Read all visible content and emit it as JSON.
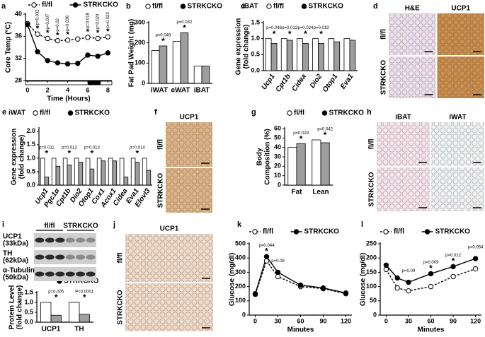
{
  "chart_data": [
    {
      "label": "a",
      "type": "line",
      "ylabel": [
        "Core Temp (°C)"
      ],
      "xlabel": "Time (Hours)",
      "x": [
        0,
        1,
        2,
        3,
        4,
        5,
        6,
        7,
        8
      ],
      "xlim": [
        -0.2,
        8.4
      ],
      "xticks": [
        0,
        2,
        4,
        6,
        8
      ],
      "ylim": [
        28,
        40
      ],
      "yticks": [
        28,
        32,
        36,
        40
      ],
      "series": [
        {
          "name": "fl/fl",
          "color": "#000000",
          "marker": "open",
          "dashed": true,
          "values": [
            38.3,
            36.4,
            35.6,
            35.2,
            35.3,
            35.5,
            35.8,
            35.6,
            35.9
          ]
        },
        {
          "name": "STRKCKO",
          "color": "#000000",
          "marker": "filled",
          "dashed": false,
          "values": [
            38.1,
            33.2,
            31.6,
            31.2,
            31.0,
            31.1,
            32.6,
            32.4,
            33.0
          ]
        }
      ],
      "p_values": [
        null,
        "p=0.032",
        "p=0.007",
        "p=0.02",
        "p=0.036",
        null,
        "p=0.018",
        "p=0.024",
        "p=0.023"
      ],
      "stars": [
        null,
        "*",
        "*",
        "*",
        "*",
        null,
        "*",
        "*",
        "*"
      ]
    },
    {
      "label": "b",
      "type": "bar",
      "ylabel": [
        "Fat Pad Weight (mg)"
      ],
      "categories": [
        "iWAT",
        "eWAT",
        "iBAT"
      ],
      "ylim": [
        0,
        300
      ],
      "yticks": [
        0,
        100,
        200,
        300
      ],
      "series": [
        {
          "name": "fl/fl",
          "color": "#ffffff",
          "marker": "open",
          "values": [
            162,
            208,
            85
          ]
        },
        {
          "name": "STRKCKO",
          "color": "#9e9e9e",
          "marker": "filled",
          "values": [
            185,
            250,
            86
          ]
        }
      ],
      "p_values": [
        "p=0.049",
        "p=0.032",
        null
      ],
      "stars": [
        "*",
        "*",
        null
      ]
    },
    {
      "label": "c",
      "type": "bar",
      "title": "iBAT",
      "ylabel": [
        "Gene expression",
        "(fold change)"
      ],
      "italic_categories": true,
      "categories": [
        "Ucp1",
        "Cpt1b",
        "Cidea",
        "Dio2",
        "Otop1",
        "Eva1"
      ],
      "ylim": [
        0,
        1.5
      ],
      "yticks": [
        {
          "value": 0,
          "label": "0.0"
        },
        {
          "value": 0.5,
          "label": "0.5"
        },
        {
          "value": 1,
          "label": "1.0"
        },
        {
          "value": 1.5,
          "label": "1.5"
        }
      ],
      "series": [
        {
          "name": "fl/fl",
          "color": "#ffffff",
          "marker": "open",
          "values": [
            1.0,
            1.0,
            1.0,
            1.0,
            1.0,
            1.0
          ]
        },
        {
          "name": "STRKCKO",
          "color": "#9e9e9e",
          "marker": "filled",
          "values": [
            0.85,
            0.95,
            0.85,
            0.85,
            0.9,
            0.95
          ]
        }
      ],
      "p_values": [
        "p=0.046",
        "p=0.013",
        "p=0.024",
        "p=0.019",
        null,
        null
      ],
      "stars": [
        "*",
        "*",
        "*",
        "*",
        null,
        null
      ]
    },
    {
      "label": "e",
      "type": "bar",
      "title": "iWAT",
      "ylabel": [
        "Gene expression",
        "(fold change)"
      ],
      "italic_categories": true,
      "categories": [
        "Ucp1",
        "Pgc1α",
        "Cpt1b",
        "Dio2",
        "Otop1",
        "Cox1",
        "Acox1",
        "Cidea",
        "Eva1",
        "Elovl3"
      ],
      "ylim": [
        0,
        2.1
      ],
      "yticks": [
        {
          "value": 0,
          "label": "0.0"
        },
        {
          "value": 0.5,
          "label": "0.5"
        },
        {
          "value": 1,
          "label": "1.0"
        },
        {
          "value": 1.5,
          "label": "1.5"
        },
        {
          "value": 2,
          "label": "2.0"
        }
      ],
      "series": [
        {
          "name": "fl/fl",
          "color": "#ffffff",
          "marker": "open",
          "values": [
            1.0,
            1.0,
            1.0,
            1.0,
            1.0,
            1.0,
            1.0,
            1.0,
            1.0,
            1.0
          ]
        },
        {
          "name": "STRKCKO",
          "color": "#9e9e9e",
          "marker": "filled",
          "values": [
            0.3,
            0.7,
            0.75,
            0.85,
            0.6,
            0.9,
            0.9,
            0.3,
            0.85,
            0.55
          ]
        }
      ],
      "p_values": [
        "p=0.011",
        null,
        "p=0.012",
        null,
        "p=0.013",
        null,
        null,
        null,
        "p=0.014",
        null
      ],
      "stars": [
        "*",
        null,
        "*",
        null,
        "*",
        null,
        null,
        null,
        "*",
        null
      ]
    },
    {
      "label": "g",
      "type": "bar",
      "ylabel": [
        "Body",
        "Composition (%)"
      ],
      "categories": [
        "Fat",
        "Lean"
      ],
      "ylim": [
        0,
        60
      ],
      "yticks": [
        0,
        10,
        20,
        30,
        40,
        50,
        60
      ],
      "series": [
        {
          "name": "fl/fl",
          "color": "#ffffff",
          "marker": "open",
          "values": [
            40,
            48
          ]
        },
        {
          "name": "STRKCKO",
          "color": "#9e9e9e",
          "marker": "filled",
          "values": [
            44,
            45
          ]
        }
      ],
      "p_values": [
        "p=0.029",
        "p=0.042"
      ],
      "stars": [
        "*",
        "*"
      ]
    },
    {
      "type": "bar",
      "ylabel": [
        "Protein Level",
        "(fold change)"
      ],
      "categories": [
        "UCP1",
        "TH"
      ],
      "ylim": [
        0,
        1.5
      ],
      "yticks": [
        {
          "value": 0,
          "label": "0.0"
        },
        {
          "value": 0.5,
          "label": "0.5"
        },
        {
          "value": 1,
          "label": "1.0"
        },
        {
          "value": 1.5,
          "label": "1.5"
        }
      ],
      "series": [
        {
          "name": "fl/fl",
          "color": "#ffffff",
          "marker": "open",
          "values": [
            1.0,
            1.0
          ]
        },
        {
          "name": "STRKCKO",
          "color": "#9e9e9e",
          "marker": "filled",
          "values": [
            0.35,
            0.4
          ]
        }
      ],
      "p_values": [
        "p=0.005",
        "P<0.0001"
      ],
      "stars": [
        "*",
        "*"
      ]
    },
    {
      "label": "k",
      "type": "line",
      "ylabel": [
        "Glucose (mg/dl)"
      ],
      "xlabel": "Minutes",
      "x": [
        0,
        15,
        30,
        60,
        90,
        120
      ],
      "xlim": [
        -8,
        128
      ],
      "xticks": [
        0,
        30,
        60,
        90,
        120
      ],
      "ylim": [
        0,
        500
      ],
      "yticks": [
        0,
        100,
        200,
        300,
        400,
        500
      ],
      "series": [
        {
          "name": "fl/fl",
          "color": "#000000",
          "marker": "open",
          "dashed": true,
          "values": [
            145,
            380,
            270,
            200,
            185,
            150
          ]
        },
        {
          "name": "STRKCKO",
          "color": "#000000",
          "marker": "filled",
          "dashed": false,
          "values": [
            150,
            410,
            300,
            210,
            190,
            155
          ]
        }
      ],
      "p_values": [
        null,
        "p=0.044",
        "p=0.09",
        null,
        null,
        null
      ],
      "stars": [
        null,
        "*",
        null,
        null,
        null,
        null
      ]
    },
    {
      "label": "l",
      "type": "line",
      "ylabel": [
        "Glucose (mg/dl)"
      ],
      "xlabel": "Minutes",
      "x": [
        0,
        15,
        30,
        60,
        90,
        120
      ],
      "xlim": [
        -8,
        128
      ],
      "xticks": [
        0,
        30,
        60,
        90,
        120
      ],
      "ylim": [
        0,
        250
      ],
      "yticks": [
        0,
        50,
        100,
        150,
        200,
        250
      ],
      "series": [
        {
          "name": "fl/fl",
          "color": "#000000",
          "marker": "open",
          "dashed": true,
          "values": [
            160,
            95,
            85,
            100,
            135,
            162
          ]
        },
        {
          "name": "STRKCKO",
          "color": "#000000",
          "marker": "filled",
          "dashed": false,
          "values": [
            175,
            130,
            115,
            145,
            170,
            198
          ]
        }
      ],
      "p_values": [
        null,
        null,
        "p=0.09",
        "p=0.009",
        "p=0.012",
        "p=0.054"
      ],
      "stars": [
        null,
        null,
        null,
        "*",
        "*",
        null
      ]
    }
  ],
  "image_panels": [
    {
      "label": "d",
      "columns": [
        "H&E",
        "UCP1"
      ],
      "rows": [
        "fl/fl",
        "STRKCKO"
      ],
      "colors": [
        "#ece0ee",
        "#c98f4f"
      ]
    },
    {
      "label": "f",
      "columns": [
        "UCP1"
      ],
      "rows": [
        "fl/fl",
        "STRKCKO"
      ],
      "colors": [
        "#dcb48a"
      ]
    },
    {
      "label": "h",
      "columns": [
        "iBAT",
        "iWAT"
      ],
      "rows": [
        "fl/fl",
        "STRKCKO"
      ],
      "colors": [
        "#f4e6ee",
        "#eef3f6"
      ]
    },
    {
      "label": "j",
      "columns": [
        "UCP1"
      ],
      "rows": [
        "fl/fl",
        "STRKCKO"
      ],
      "colors": [
        "#efdccc"
      ]
    }
  ],
  "blot": {
    "label": "i",
    "groups": [
      "fl/fl",
      "STRKCKO"
    ],
    "bands": [
      [
        "UCP1",
        "(33kDa)"
      ],
      [
        "TH",
        "(62kDa)"
      ],
      [
        "α-Tubulin",
        "(50kDa)"
      ]
    ]
  }
}
